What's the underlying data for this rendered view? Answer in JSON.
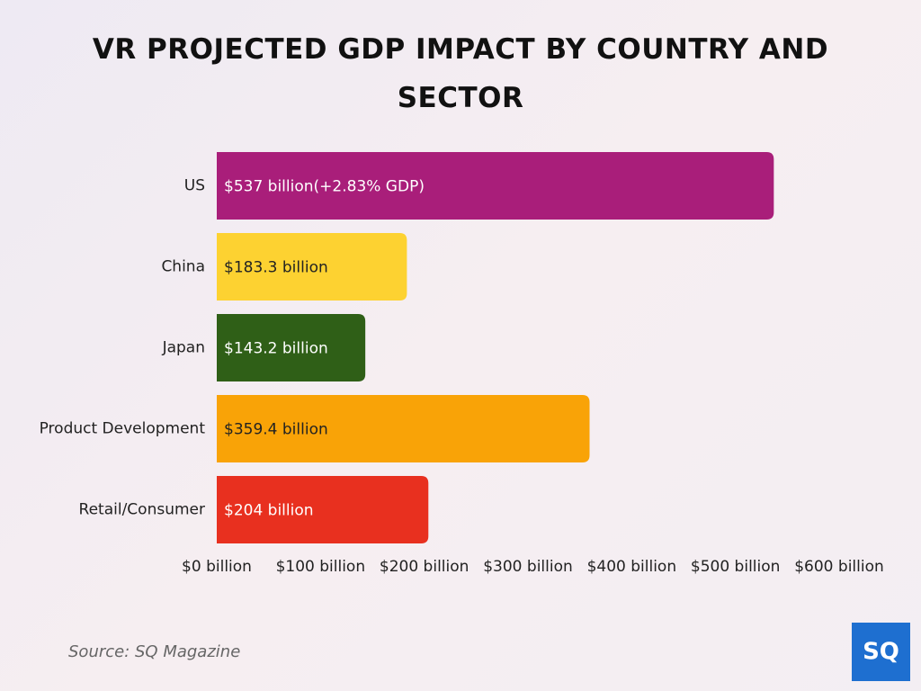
{
  "chart_data": {
    "type": "hbar",
    "title": "VR PROJECTED GDP IMPACT BY COUNTRY AND SECTOR",
    "categories": [
      "US",
      "China",
      "Japan",
      "Product Development",
      "Retail/Consumer"
    ],
    "values": [
      537,
      183.3,
      143.2,
      359.4,
      204
    ],
    "value_labels": [
      "$537 billion(+2.83% GDP)",
      "$183.3 billion",
      "$143.2 billion",
      "$359.4 billion",
      "$204 billion"
    ],
    "colors": [
      "#a91e7a",
      "#fdd231",
      "#2f5f17",
      "#f9a307",
      "#e8301f"
    ],
    "xlim": [
      0,
      600
    ],
    "xticks": [
      {
        "value": 0,
        "label": "$0 billion"
      },
      {
        "value": 100,
        "label": "$100 billion"
      },
      {
        "value": 200,
        "label": "$200 billion"
      },
      {
        "value": 300,
        "label": "$300 billion"
      },
      {
        "value": 400,
        "label": "$400 billion"
      },
      {
        "value": 500,
        "label": "$500 billion"
      },
      {
        "value": 600,
        "label": "$600 billion"
      }
    ],
    "source": "Source: SQ Magazine",
    "logo": "SQ"
  }
}
